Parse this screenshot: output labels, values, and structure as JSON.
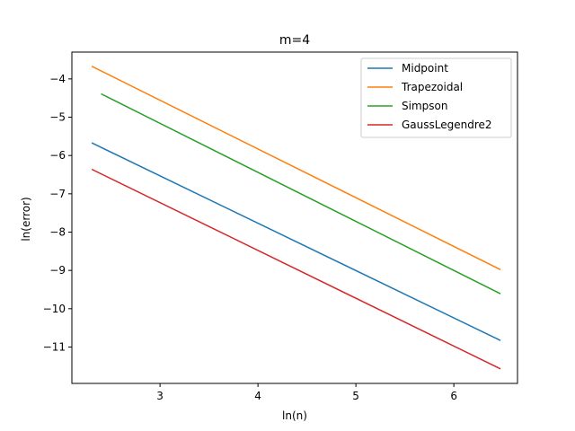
{
  "chart_data": {
    "type": "line",
    "title": "m=4",
    "xlabel": "ln(n)",
    "ylabel": "ln(error)",
    "xlim": [
      2.1,
      6.65
    ],
    "ylim": [
      -11.95,
      -3.3
    ],
    "xticks": [
      3,
      4,
      5,
      6
    ],
    "yticks": [
      -4,
      -5,
      -6,
      -7,
      -8,
      -9,
      -10,
      -11
    ],
    "grid": false,
    "legend_position": "upper right",
    "series": [
      {
        "name": "Midpoint",
        "color": "#1f77b4",
        "x": [
          2.303,
          6.477
        ],
        "y": [
          -5.67,
          -10.83
        ]
      },
      {
        "name": "Trapezoidal",
        "color": "#ff7f0e",
        "x": [
          2.303,
          6.477
        ],
        "y": [
          -3.67,
          -8.98
        ]
      },
      {
        "name": "Simpson",
        "color": "#2ca02c",
        "x": [
          2.398,
          6.477
        ],
        "y": [
          -4.39,
          -9.61
        ]
      },
      {
        "name": "GaussLegendre2",
        "color": "#d62728",
        "x": [
          2.303,
          6.477
        ],
        "y": [
          -6.36,
          -11.57
        ]
      }
    ]
  }
}
